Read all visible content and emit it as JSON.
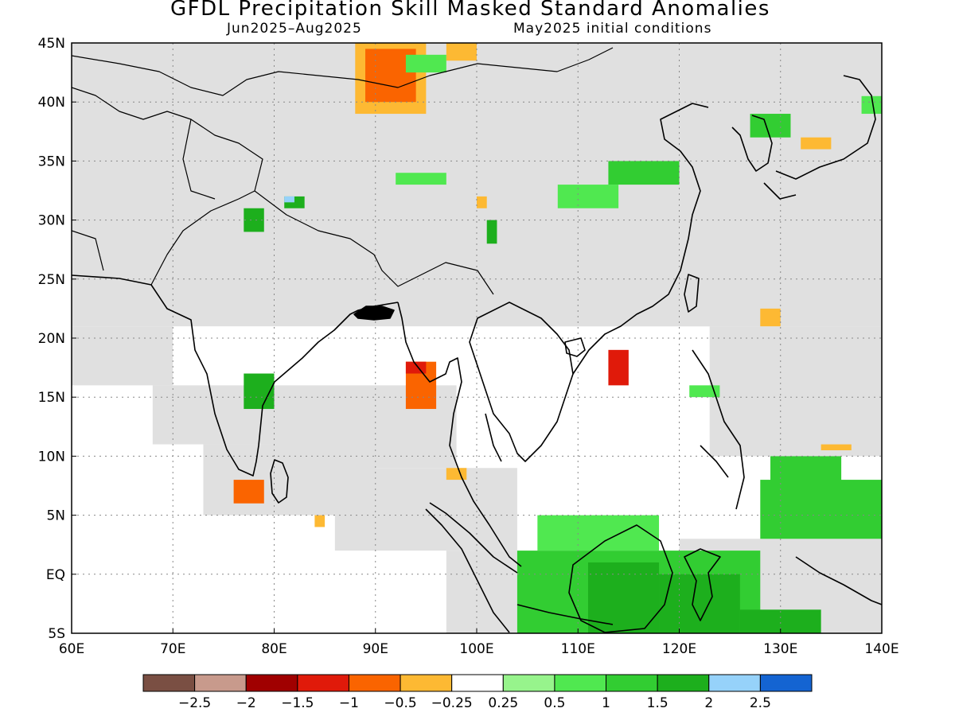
{
  "header": {
    "title": "GFDL Precipitation Skill Masked Standard Anomalies",
    "season": "Jun2025–Aug2025",
    "init": "May2025 initial conditions"
  },
  "map": {
    "lat_ticks": [
      "45N",
      "40N",
      "35N",
      "30N",
      "25N",
      "20N",
      "15N",
      "10N",
      "5N",
      "EQ",
      "5S"
    ],
    "lon_ticks": [
      "60E",
      "70E",
      "80E",
      "90E",
      "100E",
      "110E",
      "120E",
      "130E",
      "140E"
    ],
    "extent": {
      "lon": [
        60,
        140
      ],
      "lat": [
        -5,
        45
      ]
    },
    "mask_color": "#e0e0e0",
    "anomaly_patches": [
      {
        "lon": [
          88,
          95
        ],
        "lat": [
          39,
          45
        ],
        "value": -0.5
      },
      {
        "lon": [
          89,
          94
        ],
        "lat": [
          40,
          44.5
        ],
        "value": -1
      },
      {
        "lon": [
          97,
          100
        ],
        "lat": [
          43.5,
          45
        ],
        "value": -0.5
      },
      {
        "lon": [
          93,
          97
        ],
        "lat": [
          42.5,
          44
        ],
        "value": 0.5
      },
      {
        "lon": [
          113,
          120
        ],
        "lat": [
          33,
          35
        ],
        "value": 1
      },
      {
        "lon": [
          108,
          114
        ],
        "lat": [
          31,
          33
        ],
        "value": 0.5
      },
      {
        "lon": [
          77,
          79
        ],
        "lat": [
          29,
          31
        ],
        "value": 1.5
      },
      {
        "lon": [
          81,
          83
        ],
        "lat": [
          31,
          32
        ],
        "value": 1.5
      },
      {
        "lon": [
          81,
          82
        ],
        "lat": [
          31.5,
          32
        ],
        "value": 2
      },
      {
        "lon": [
          77,
          80
        ],
        "lat": [
          14,
          17
        ],
        "value": 1.5
      },
      {
        "lon": [
          93,
          96
        ],
        "lat": [
          14,
          18
        ],
        "value": -1
      },
      {
        "lon": [
          93,
          95
        ],
        "lat": [
          17,
          18
        ],
        "value": -1.5
      },
      {
        "lon": [
          113,
          115
        ],
        "lat": [
          16,
          19
        ],
        "value": -1.5
      },
      {
        "lon": [
          76,
          79
        ],
        "lat": [
          6,
          8
        ],
        "value": -1
      },
      {
        "lon": [
          84,
          85
        ],
        "lat": [
          4,
          5
        ],
        "value": -0.5
      },
      {
        "lon": [
          97,
          99
        ],
        "lat": [
          8,
          9
        ],
        "value": -0.5
      },
      {
        "lon": [
          132,
          135
        ],
        "lat": [
          36,
          37
        ],
        "value": -0.5
      },
      {
        "lon": [
          128,
          130
        ],
        "lat": [
          21,
          22.5
        ],
        "value": -0.5
      },
      {
        "lon": [
          127,
          131
        ],
        "lat": [
          37,
          39
        ],
        "value": 1
      },
      {
        "lon": [
          138,
          140
        ],
        "lat": [
          39,
          40.5
        ],
        "value": 0.5
      },
      {
        "lon": [
          106,
          118
        ],
        "lat": [
          2,
          5
        ],
        "value": 0.5
      },
      {
        "lon": [
          104,
          128
        ],
        "lat": [
          -5,
          2
        ],
        "value": 1
      },
      {
        "lon": [
          111,
          118
        ],
        "lat": [
          -5,
          1
        ],
        "value": 1.5
      },
      {
        "lon": [
          118,
          126
        ],
        "lat": [
          -5,
          0
        ],
        "value": 1.5
      },
      {
        "lon": [
          126,
          134
        ],
        "lat": [
          -5,
          -3
        ],
        "value": 1.5
      },
      {
        "lon": [
          128,
          140
        ],
        "lat": [
          3,
          8
        ],
        "value": 1
      },
      {
        "lon": [
          129,
          136
        ],
        "lat": [
          5,
          10
        ],
        "value": 1
      },
      {
        "lon": [
          121,
          124
        ],
        "lat": [
          15,
          16
        ],
        "value": 0.5
      },
      {
        "lon": [
          134,
          137
        ],
        "lat": [
          10.5,
          11
        ],
        "value": -0.5
      },
      {
        "lon": [
          92,
          97
        ],
        "lat": [
          33,
          34
        ],
        "value": 0.5
      },
      {
        "lon": [
          101,
          102
        ],
        "lat": [
          28,
          30
        ],
        "value": 1.5
      },
      {
        "lon": [
          100,
          101
        ],
        "lat": [
          31,
          32
        ],
        "value": -0.5
      }
    ]
  },
  "legend": {
    "colors": [
      "#7a4f43",
      "#c89a8c",
      "#a00000",
      "#e01a0a",
      "#fa6400",
      "#fdb933",
      "#ffffff",
      "#97f48c",
      "#50e850",
      "#32cd32",
      "#1daf1d",
      "#96d2fa",
      "#1464d2"
    ],
    "labels": [
      "−2.5",
      "−2",
      "−1.5",
      "−1",
      "−0.5",
      "−0.25",
      "0.25",
      "0.5",
      "1",
      "1.5",
      "2",
      "2.5"
    ]
  }
}
